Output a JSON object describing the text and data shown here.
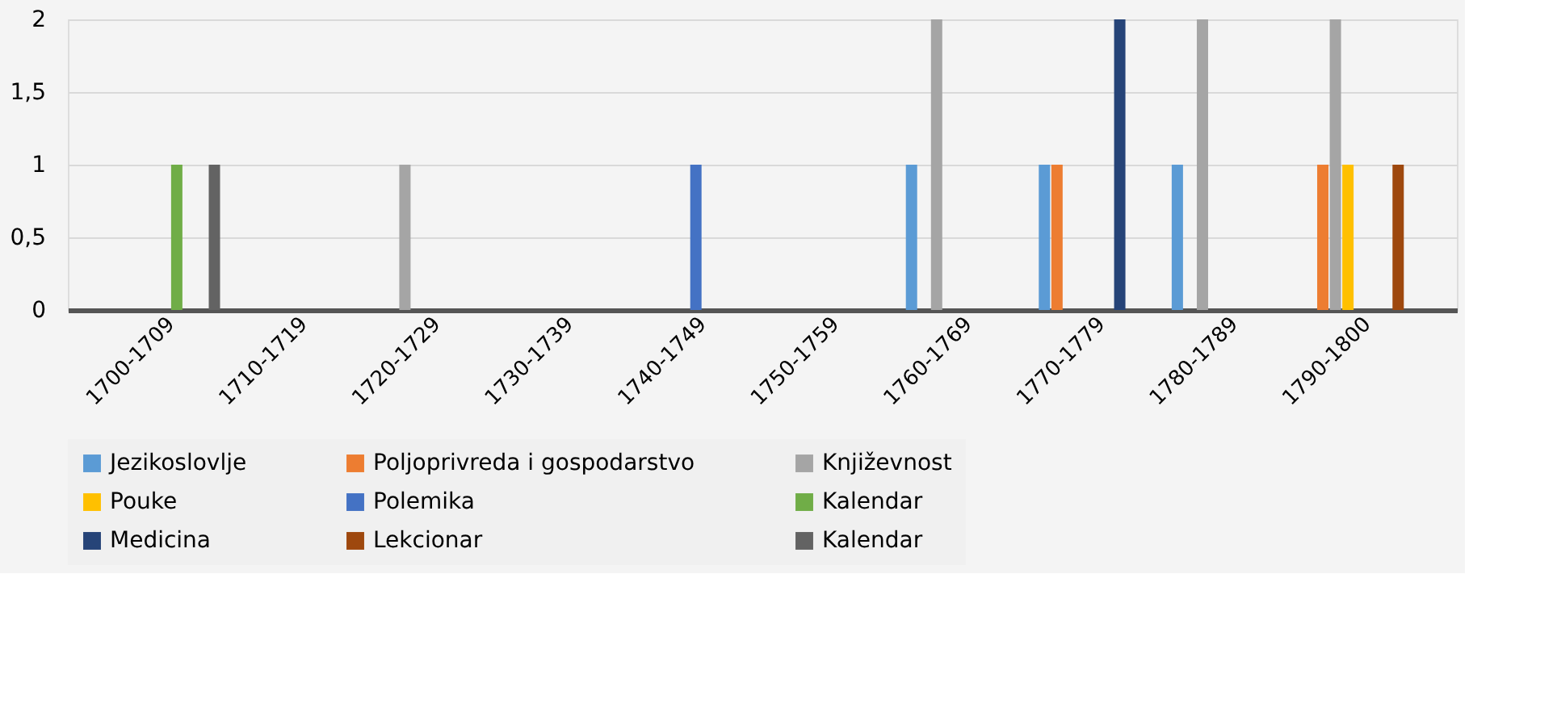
{
  "chart_data": {
    "type": "bar",
    "categories": [
      "1700-1709",
      "1710-1719",
      "1720-1729",
      "1730-1739",
      "1740-1749",
      "1750-1759",
      "1760-1769",
      "1770-1779",
      "1780-1789",
      "1790-1800"
    ],
    "series": [
      {
        "name": "Jezikoslovlje",
        "color": "#5b9bd5",
        "values": [
          null,
          null,
          null,
          null,
          null,
          null,
          1,
          1,
          1,
          null
        ]
      },
      {
        "name": "Poljoprivreda i gospodarstvo",
        "color": "#ed7d31",
        "values": [
          null,
          null,
          null,
          null,
          null,
          null,
          null,
          1,
          null,
          1
        ]
      },
      {
        "name": "Književnost",
        "color": "#a5a5a5",
        "values": [
          null,
          null,
          1,
          null,
          null,
          null,
          2,
          null,
          2,
          2
        ]
      },
      {
        "name": "Pouke",
        "color": "#ffc000",
        "values": [
          null,
          null,
          null,
          null,
          null,
          null,
          null,
          null,
          null,
          1
        ]
      },
      {
        "name": "Polemika",
        "color": "#4472c4",
        "values": [
          null,
          null,
          null,
          null,
          1,
          null,
          null,
          null,
          null,
          null
        ]
      },
      {
        "name": "Kalendar",
        "color": "#70ad47",
        "values": [
          1,
          null,
          null,
          null,
          null,
          null,
          null,
          null,
          null,
          null
        ]
      },
      {
        "name": "Medicina",
        "color": "#264478",
        "values": [
          null,
          null,
          null,
          null,
          null,
          null,
          null,
          2,
          null,
          null
        ]
      },
      {
        "name": "Lekcionar",
        "color": "#9e480e",
        "values": [
          null,
          null,
          null,
          null,
          null,
          null,
          null,
          null,
          null,
          1
        ]
      },
      {
        "name": "Kalendar",
        "color": "#636363",
        "values": [
          1,
          null,
          null,
          null,
          null,
          null,
          null,
          null,
          null,
          null
        ]
      }
    ],
    "ylim": [
      0,
      2
    ],
    "yticks": [
      0,
      {
        "value": 0.5,
        "label": "0,5"
      },
      1,
      {
        "value": 1.5,
        "label": "1,5"
      },
      2
    ],
    "grid": "y",
    "legend": "bottom"
  }
}
